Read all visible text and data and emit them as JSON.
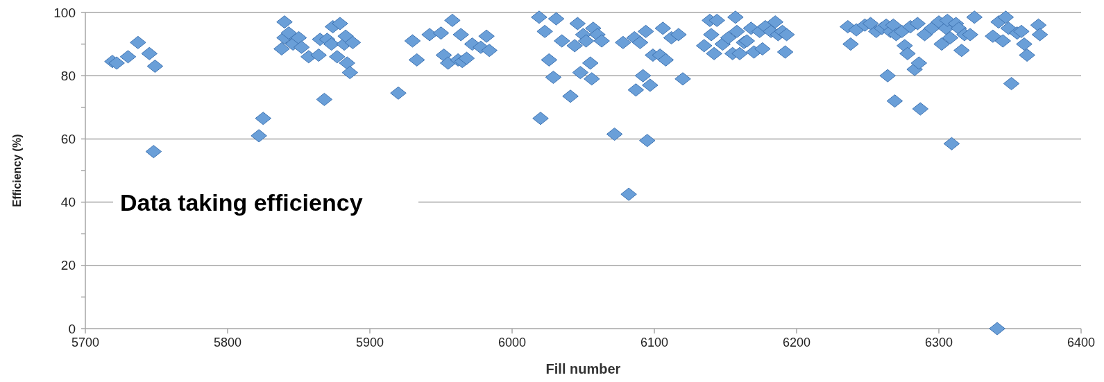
{
  "chart_data": {
    "type": "scatter",
    "xlabel": "Fill number",
    "ylabel": "Efficiency (%)",
    "annotations": [
      "Data taking efficiency"
    ],
    "xlim": [
      5700,
      6400
    ],
    "xticks": [
      5700,
      5800,
      5900,
      6000,
      6100,
      6200,
      6300,
      6400
    ],
    "ylim": [
      0,
      100
    ],
    "yticks": [
      0,
      {
        "value": 10,
        "label": null
      },
      20,
      {
        "value": 30,
        "label": null
      },
      40,
      {
        "value": 50,
        "label": null
      },
      60,
      {
        "value": 70,
        "label": null
      },
      80,
      {
        "value": 90,
        "label": null
      },
      100
    ],
    "grid": "y",
    "marker": "diamond",
    "series": [
      {
        "color": "#6a9fd8",
        "x": [
          5719,
          5722,
          5730,
          5737,
          5745,
          5749,
          5748,
          5822,
          5825,
          5840,
          5838,
          5840,
          5843,
          5846,
          5850,
          5852,
          5857,
          5864,
          5865,
          5868,
          5870,
          5873,
          5874,
          5877,
          5879,
          5882,
          5883,
          5884,
          5886,
          5888,
          5920,
          5930,
          5933,
          5942,
          5950,
          5952,
          5955,
          5958,
          5962,
          5964,
          5965,
          5968,
          5972,
          5978,
          5982,
          5984,
          6019,
          6020,
          6023,
          6026,
          6029,
          6031,
          6035,
          6041,
          6044,
          6046,
          6048,
          6050,
          6052,
          6055,
          6056,
          6057,
          6060,
          6063,
          6072,
          6078,
          6082,
          6086,
          6087,
          6090,
          6092,
          6095,
          6094,
          6097,
          6099,
          6104,
          6106,
          6108,
          6112,
          6117,
          6120,
          6135,
          6139,
          6140,
          6142,
          6144,
          6148,
          6152,
          6155,
          6157,
          6158,
          6160,
          6163,
          6165,
          6168,
          6170,
          6174,
          6176,
          6178,
          6182,
          6185,
          6187,
          6190,
          6192,
          6193,
          6236,
          6238,
          6242,
          6248,
          6252,
          6256,
          6260,
          6263,
          6264,
          6266,
          6268,
          6269,
          6270,
          6274,
          6276,
          6278,
          6280,
          6283,
          6285,
          6286,
          6287,
          6290,
          6295,
          6300,
          6302,
          6305,
          6306,
          6308,
          6309,
          6312,
          6314,
          6316,
          6318,
          6322,
          6325,
          6338,
          6342,
          6341,
          6345,
          6347,
          6349,
          6351,
          6355,
          6358,
          6360,
          6362,
          6370,
          6371
        ],
        "values": [
          84.5,
          84,
          86,
          90.5,
          87,
          83,
          56,
          61,
          66.5,
          97,
          88.5,
          92,
          93.5,
          90,
          92,
          89,
          86,
          86.5,
          91.5,
          72.5,
          91.5,
          90,
          95.5,
          86,
          96.5,
          90,
          92.5,
          84,
          81,
          90.5,
          74.5,
          91,
          85,
          93,
          93.5,
          86.5,
          84,
          97.5,
          85,
          93,
          84.5,
          85.5,
          90,
          89,
          92.5,
          88,
          98.5,
          66.5,
          94,
          85,
          79.5,
          98,
          91,
          73.5,
          89.5,
          96.5,
          81,
          93,
          91,
          84,
          79,
          95,
          93,
          91,
          61.5,
          90.5,
          42.5,
          92,
          75.5,
          90.5,
          80,
          59.5,
          94,
          77,
          86.5,
          86.5,
          95,
          85,
          92,
          93,
          79,
          89.5,
          97.5,
          93,
          87,
          97.5,
          90,
          92,
          87,
          98.5,
          94,
          87,
          90.5,
          91,
          95,
          87.5,
          94,
          88.5,
          95.5,
          94,
          97,
          93,
          94,
          87.5,
          93,
          95.5,
          90,
          94.5,
          96,
          96.5,
          94,
          95,
          96,
          80,
          94,
          96,
          72,
          93,
          94,
          89.5,
          87,
          95.5,
          82,
          96.5,
          84,
          69.5,
          93,
          95,
          97,
          90,
          95,
          97.5,
          92,
          58.5,
          96.5,
          95,
          88,
          93,
          93,
          98.5,
          92.5,
          97,
          0,
          91,
          98.5,
          95,
          77.5,
          93.5,
          94,
          90,
          86.5,
          96,
          93
        ]
      }
    ]
  }
}
